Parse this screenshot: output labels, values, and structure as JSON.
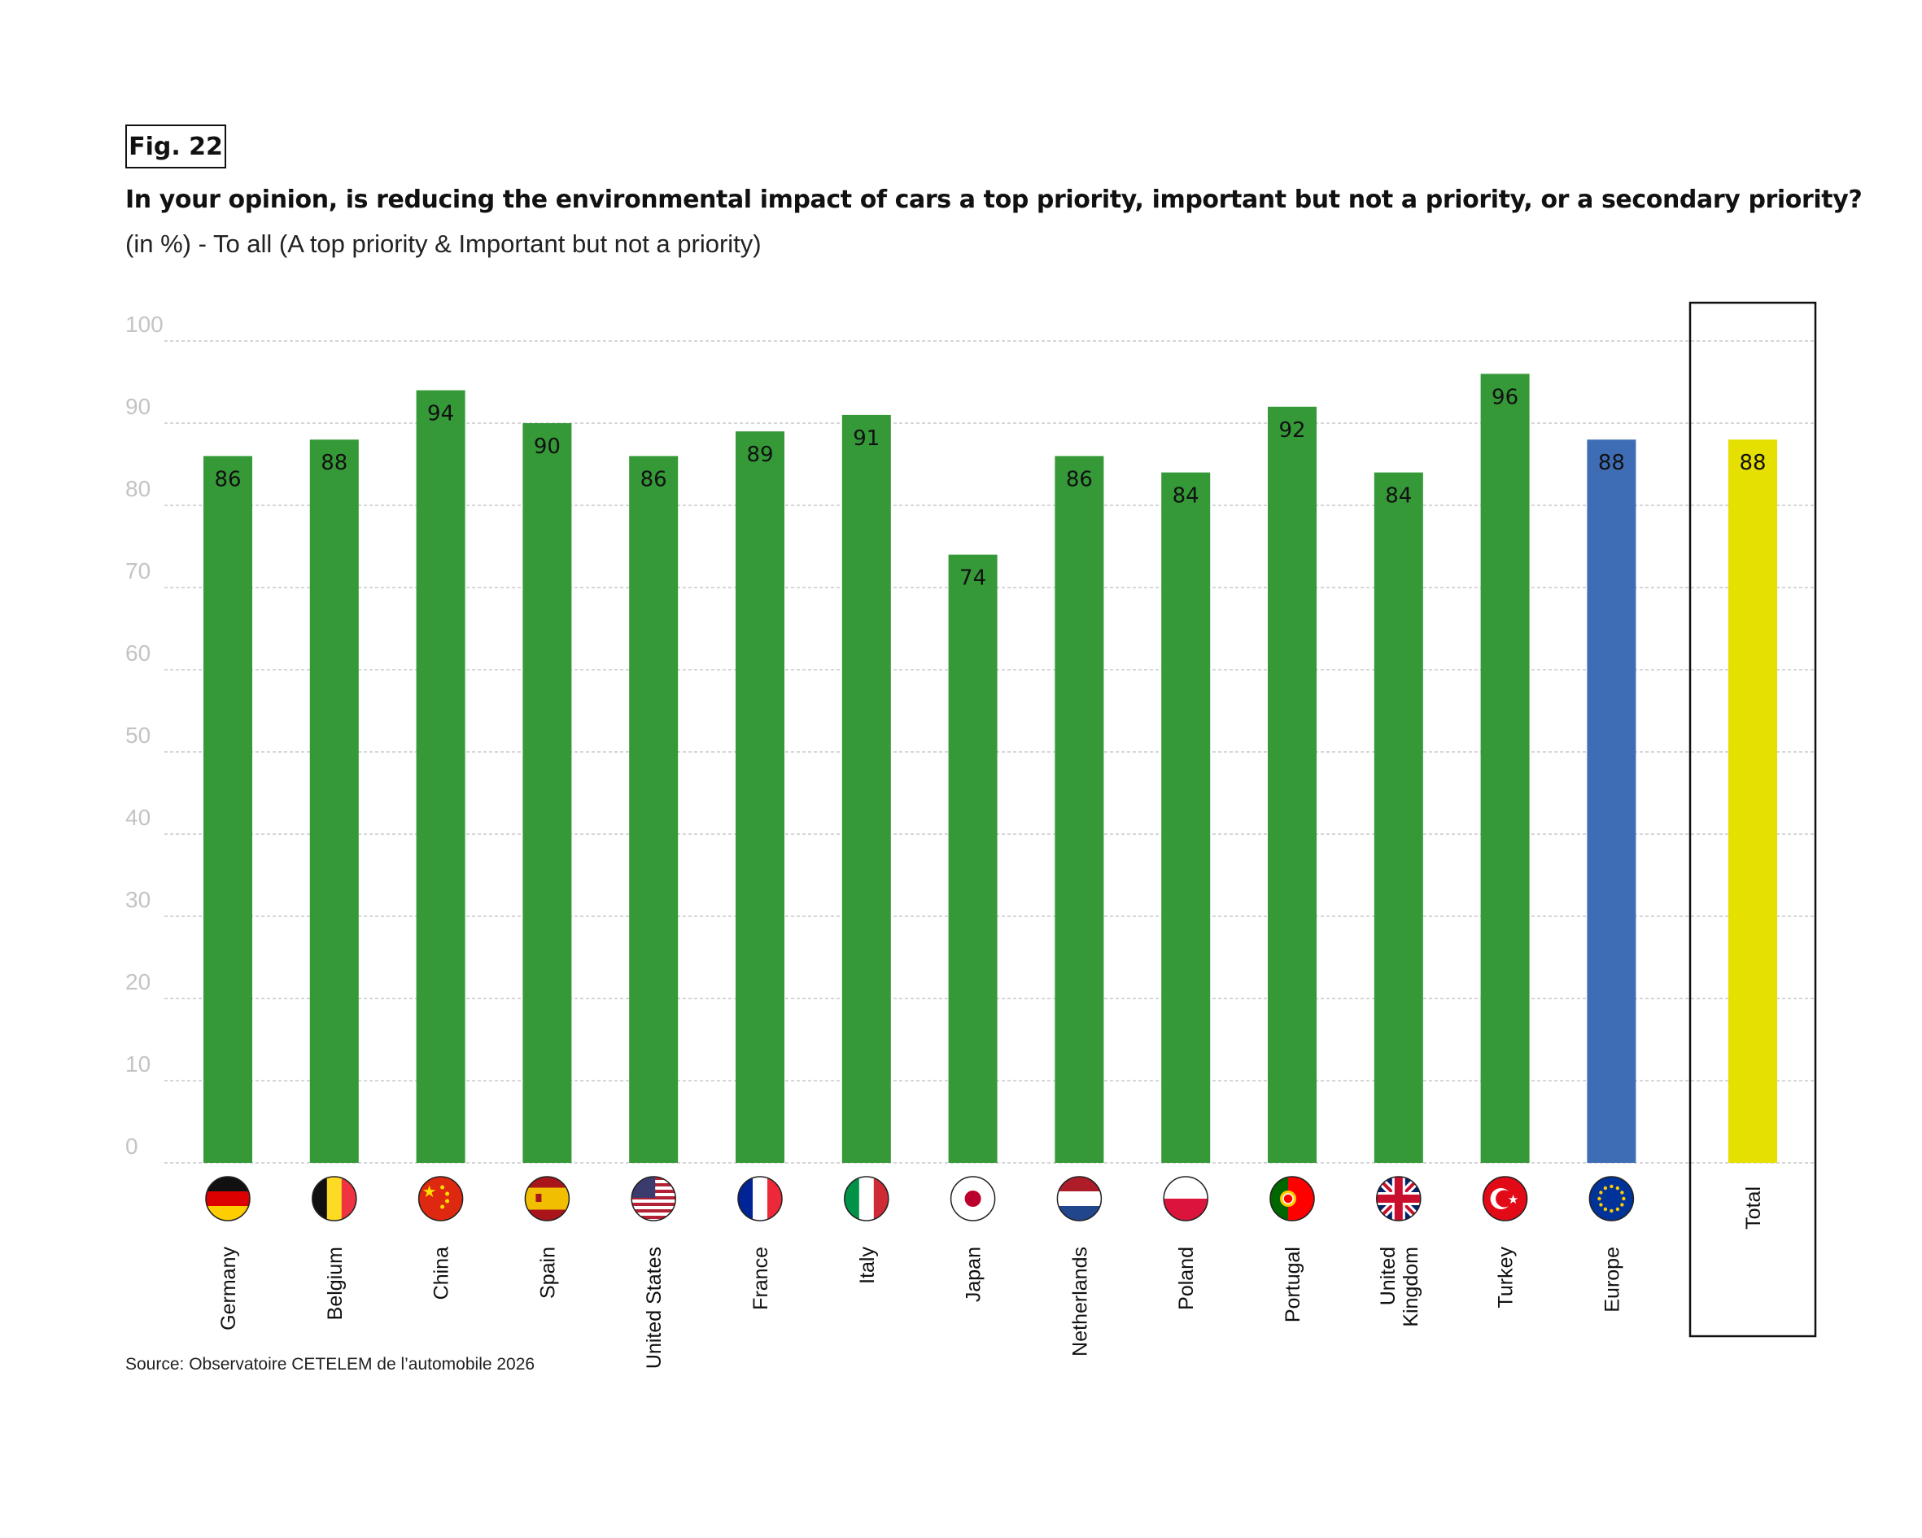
{
  "figure": {
    "label": "Fig. 22",
    "title": "In your opinion, is reducing the environmental impact of cars a top priority, important but not a priority, or a secondary priority?",
    "subtitle": "(in %) - To all (A top priority & Important but not a priority)",
    "source": "Source: Observatoire CETELEM de l’automobile 2026"
  },
  "colors": {
    "country_bar": "#359938",
    "europe_bar": "#3f6db5",
    "total_bar": "#e5e000",
    "grid": "#bdbdbd",
    "tick_text": "#c4c4c4"
  },
  "chart_data": {
    "type": "bar",
    "title": "In your opinion, is reducing the environmental impact of cars a top priority, important but not a priority, or a secondary priority?",
    "xlabel": "",
    "ylabel": "",
    "ylim": [
      0,
      100
    ],
    "yticks": [
      0,
      10,
      20,
      30,
      40,
      50,
      60,
      70,
      80,
      90,
      100
    ],
    "grid": true,
    "categories": [
      "Germany",
      "Belgium",
      "China",
      "Spain",
      "United States",
      "France",
      "Italy",
      "Japan",
      "Netherlands",
      "Poland",
      "Portugal",
      "United Kingdom",
      "Turkey",
      "Europe",
      "Total"
    ],
    "values": [
      86,
      88,
      94,
      90,
      86,
      89,
      91,
      74,
      86,
      84,
      92,
      84,
      96,
      88,
      88
    ],
    "flags": [
      "germany-flag-icon",
      "belgium-flag-icon",
      "china-flag-icon",
      "spain-flag-icon",
      "usa-flag-icon",
      "france-flag-icon",
      "italy-flag-icon",
      "japan-flag-icon",
      "netherlands-flag-icon",
      "poland-flag-icon",
      "portugal-flag-icon",
      "uk-flag-icon",
      "turkey-flag-icon",
      "eu-flag-icon",
      ""
    ]
  }
}
